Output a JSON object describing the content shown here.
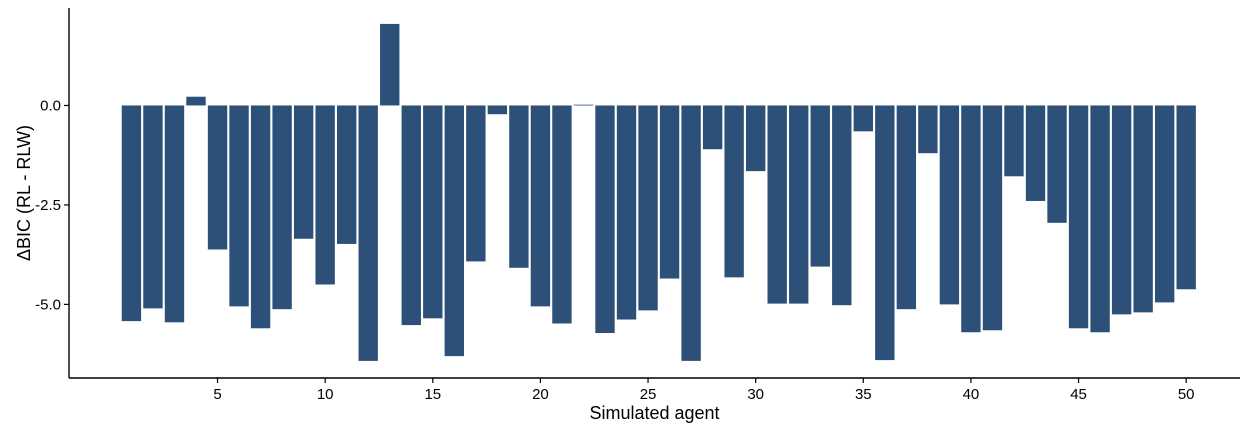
{
  "chart_data": {
    "type": "bar",
    "title": "",
    "xlabel": "Simulated agent",
    "ylabel": "ΔBIC (RL - RLW)",
    "bar_color": "#2c5078",
    "x": [
      1,
      2,
      3,
      4,
      5,
      6,
      7,
      8,
      9,
      10,
      11,
      12,
      13,
      14,
      15,
      16,
      17,
      18,
      19,
      20,
      21,
      22,
      23,
      24,
      25,
      26,
      27,
      28,
      29,
      30,
      31,
      32,
      33,
      34,
      35,
      36,
      37,
      38,
      39,
      40,
      41,
      42,
      43,
      44,
      45,
      46,
      47,
      48,
      49,
      50
    ],
    "values": [
      -5.42,
      -5.1,
      -5.45,
      0.22,
      -3.62,
      -5.05,
      -5.6,
      -5.12,
      -3.35,
      -4.5,
      -3.48,
      -6.42,
      2.05,
      -5.52,
      -5.35,
      -6.3,
      -3.92,
      -0.22,
      -4.08,
      -5.05,
      -5.48,
      0.02,
      -5.72,
      -5.38,
      -5.15,
      -4.35,
      -6.42,
      -1.1,
      -4.32,
      -1.65,
      -4.98,
      -4.98,
      -4.05,
      -5.02,
      -0.65,
      -6.4,
      -5.12,
      -1.2,
      -5.0,
      -5.7,
      -5.65,
      -1.78,
      -2.4,
      -2.95,
      -5.6,
      -5.7,
      -5.25,
      -5.2,
      -4.95,
      -4.62
    ],
    "xticks": [
      5,
      10,
      15,
      20,
      25,
      30,
      35,
      40,
      45,
      50
    ],
    "xtick_labels": [
      "5",
      "10",
      "15",
      "20",
      "25",
      "30",
      "35",
      "40",
      "45",
      "50"
    ],
    "yticks": [
      0,
      -2.5,
      -5
    ],
    "ytick_labels": [
      "0.0",
      "-2.5",
      "-5.0"
    ],
    "xlim": [
      -1.9,
      52.5
    ],
    "ylim": [
      -6.85,
      2.45
    ],
    "grid": false,
    "legend": "none"
  }
}
